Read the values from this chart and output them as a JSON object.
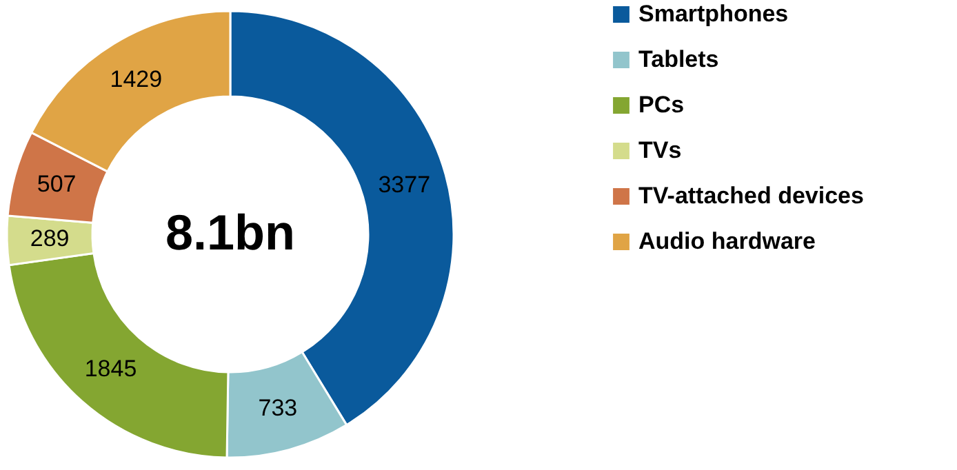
{
  "chart_data": {
    "type": "donut",
    "categories": [
      "Smartphones",
      "Tablets",
      "PCs",
      "TVs",
      "TV-attached devices",
      "Audio hardware"
    ],
    "values": [
      3377,
      733,
      1845,
      289,
      507,
      1429
    ],
    "colors": [
      "#0a5a9c",
      "#92c5cc",
      "#84a631",
      "#d4dc8c",
      "#cf7548",
      "#e0a445"
    ],
    "data_labels": true,
    "legend": "right",
    "annotations": [
      "8.1bn"
    ]
  }
}
